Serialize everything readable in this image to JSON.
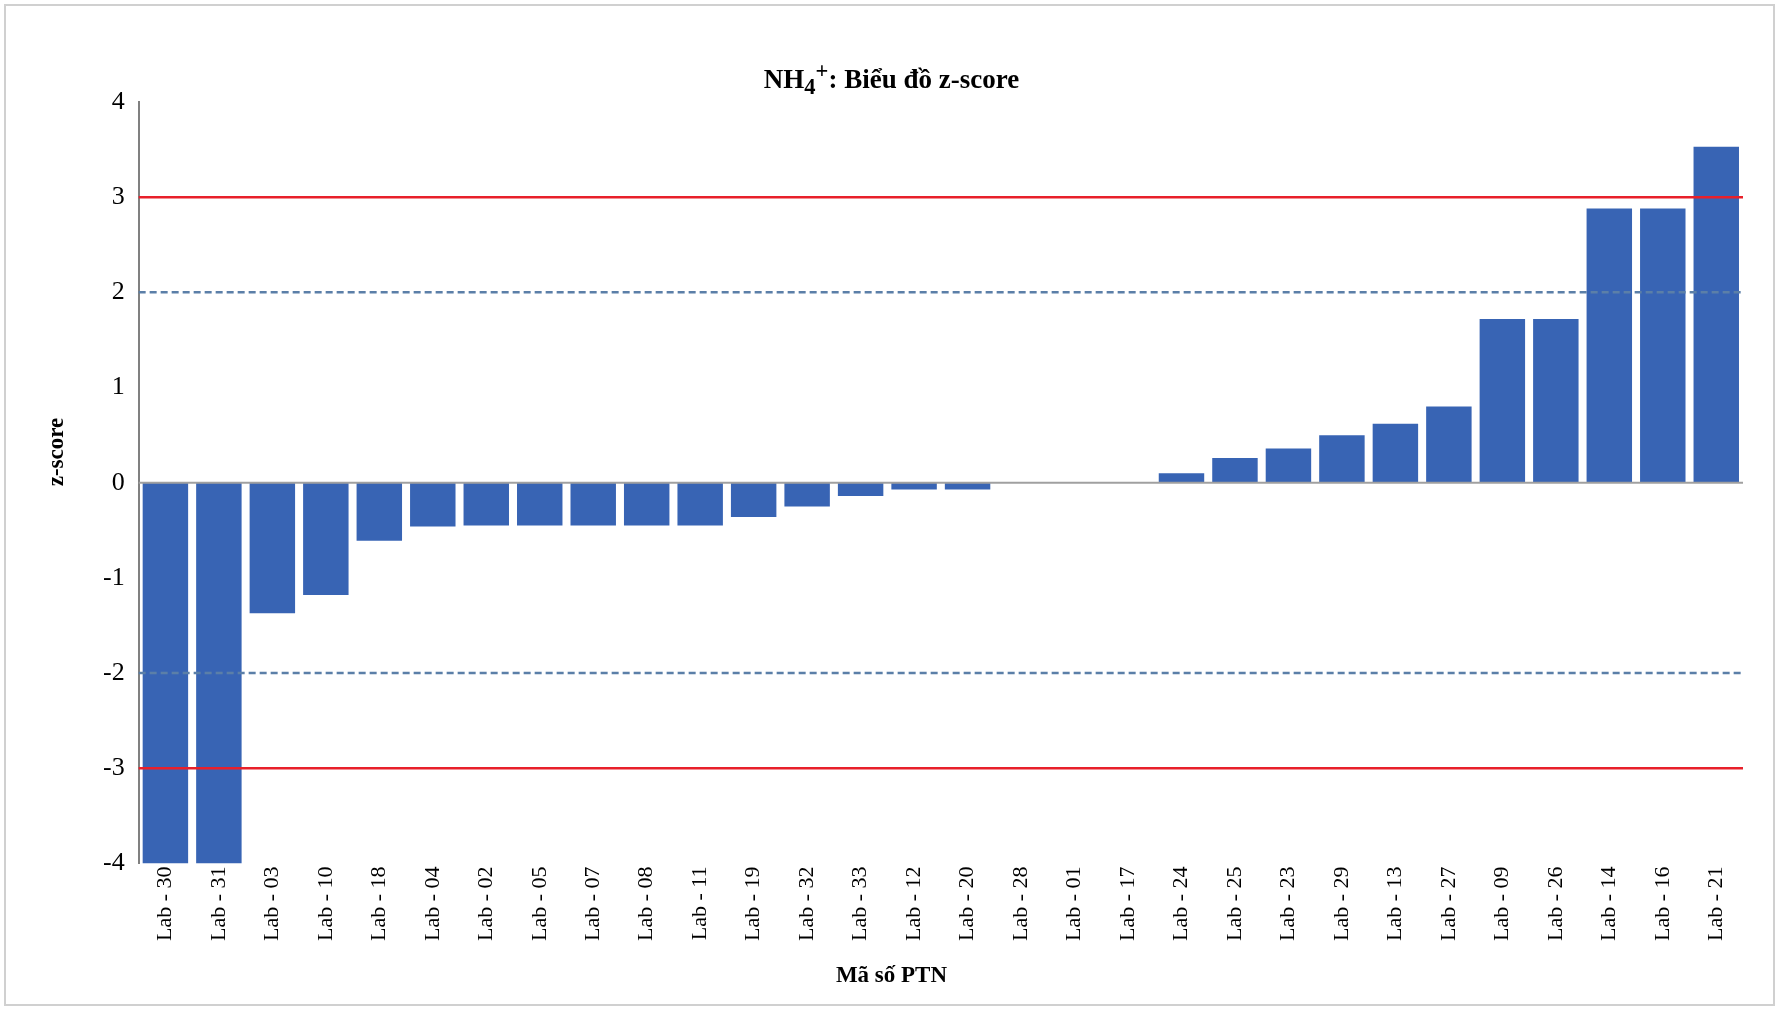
{
  "chart_data": {
    "type": "bar",
    "title": "NH$_{4}$$^{+}$: Biểu đồ z-score",
    "xlabel": "Mã số PTN",
    "ylabel": "z-score",
    "categories": [
      "Lab - 30",
      "Lab - 31",
      "Lab - 03",
      "Lab - 10",
      "Lab - 18",
      "Lab - 04",
      "Lab - 02",
      "Lab - 05",
      "Lab - 07",
      "Lab - 08",
      "Lab - 11",
      "Lab - 19",
      "Lab - 32",
      "Lab - 33",
      "Lab - 12",
      "Lab - 20",
      "Lab - 28",
      "Lab - 01",
      "Lab - 17",
      "Lab - 24",
      "Lab - 25",
      "Lab - 23",
      "Lab - 29",
      "Lab - 13",
      "Lab - 27",
      "Lab - 09",
      "Lab - 26",
      "Lab - 14",
      "Lab - 16",
      "Lab - 21"
    ],
    "values": [
      -4,
      -4,
      -1.37,
      -1.18,
      -0.61,
      -0.46,
      -0.45,
      -0.45,
      -0.45,
      -0.45,
      -0.45,
      -0.36,
      -0.25,
      -0.14,
      -0.07,
      -0.07,
      0,
      0,
      0,
      0.1,
      0.26,
      0.36,
      0.5,
      0.62,
      0.8,
      1.72,
      1.72,
      2.88,
      2.88,
      3.53
    ],
    "color": "#3864b4",
    "ylim": [
      -4,
      4
    ],
    "yticks": [
      -4,
      -3,
      -2,
      -1,
      0,
      1,
      2,
      3,
      4
    ],
    "grid": false,
    "legend": false,
    "ref_lines": [
      {
        "axis": "y",
        "value": 3,
        "color": "#e8202a",
        "line_style": "solid"
      },
      {
        "axis": "y",
        "value": 2,
        "color": "#5b7fa8",
        "line_style": "dashed"
      },
      {
        "axis": "y",
        "value": -2,
        "color": "#5b7fa8",
        "line_style": "dashed"
      },
      {
        "axis": "y",
        "value": -3,
        "color": "#e8202a",
        "line_style": "solid"
      }
    ]
  }
}
